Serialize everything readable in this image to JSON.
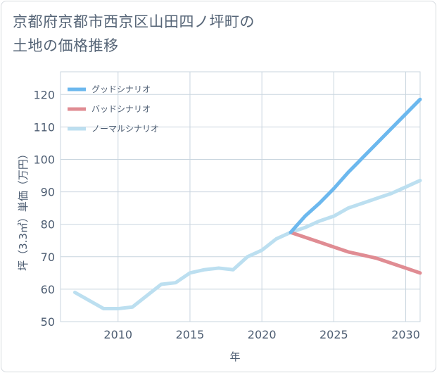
{
  "chart_data": {
    "type": "line",
    "title_line1": "京都府京都市西京区山田四ノ坪町の",
    "title_line2": "土地の価格推移",
    "xlabel": "年",
    "ylabel": "坪（3.3㎡）単価（万円）",
    "xlim": [
      2006,
      2031
    ],
    "ylim": [
      50,
      127
    ],
    "xticks": [
      2010,
      2015,
      2020,
      2025,
      2030
    ],
    "yticks": [
      50,
      60,
      70,
      80,
      90,
      100,
      110,
      120
    ],
    "grid": true,
    "legend_position": "top-left",
    "series": [
      {
        "name": "グッドシナリオ",
        "color": "#6cb8ee",
        "x": [
          2022,
          2023,
          2024,
          2025,
          2026,
          2027,
          2028,
          2029,
          2030,
          2031
        ],
        "y": [
          77.5,
          82.5,
          86.5,
          91,
          96,
          100.5,
          105,
          109.5,
          114,
          118.5
        ]
      },
      {
        "name": "バッドシナリオ",
        "color": "#e08c93",
        "x": [
          2022,
          2023,
          2024,
          2025,
          2026,
          2027,
          2028,
          2029,
          2030,
          2031
        ],
        "y": [
          77.5,
          76,
          74.5,
          73,
          71.5,
          70.5,
          69.5,
          68,
          66.5,
          65
        ]
      },
      {
        "name": "ノーマルシナリオ",
        "color": "#bcdff0",
        "x": [
          2007,
          2008,
          2009,
          2010,
          2011,
          2012,
          2013,
          2014,
          2015,
          2016,
          2017,
          2018,
          2019,
          2020,
          2021,
          2022,
          2023,
          2024,
          2025,
          2026,
          2027,
          2028,
          2029,
          2030,
          2031
        ],
        "y": [
          59,
          56.5,
          54,
          54,
          54.5,
          58,
          61.5,
          62,
          65,
          66,
          66.5,
          66,
          70,
          72,
          75.5,
          77.5,
          79,
          81,
          82.5,
          85,
          86.5,
          88,
          89.5,
          91.5,
          93.5
        ]
      }
    ]
  }
}
